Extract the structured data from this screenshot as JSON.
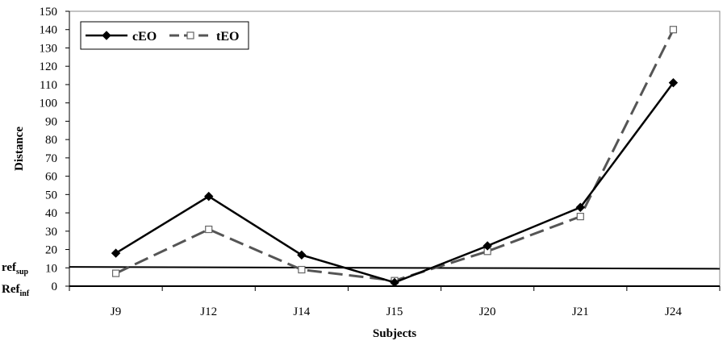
{
  "chart_data": {
    "type": "line",
    "ylabel": "Distance",
    "xlabel": "Subjects",
    "categories": [
      "J9",
      "J12",
      "J14",
      "J15",
      "J20",
      "J21",
      "J24"
    ],
    "ylim": [
      0,
      150
    ],
    "ytick_step": 10,
    "grid": false,
    "legend": "top-left",
    "series": [
      {
        "name": "cEO",
        "values": [
          18,
          49,
          17,
          2,
          22,
          43,
          111
        ],
        "color": "#000000",
        "marker": "diamond",
        "dash": "solid"
      },
      {
        "name": "tEO",
        "values": [
          7,
          31,
          9,
          3,
          19,
          38,
          140
        ],
        "color": "#555555",
        "marker": "open-square",
        "dash": "dashed"
      }
    ],
    "reference_lines": [
      {
        "label": "ref",
        "sub": "sup",
        "value_left": 10.5,
        "value_right": 9.5
      },
      {
        "label": "Ref",
        "sub": "inf",
        "value_left": 0,
        "value_right": 0
      }
    ]
  }
}
